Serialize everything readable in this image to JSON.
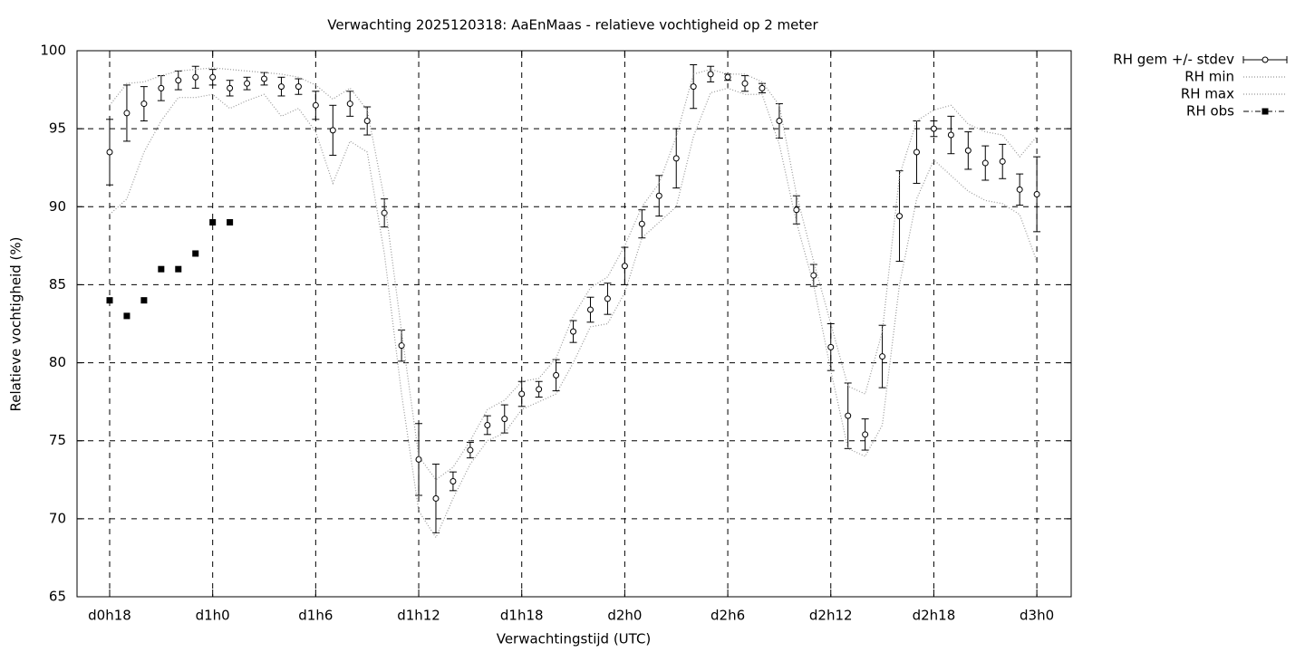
{
  "chart_data": {
    "type": "errorbar",
    "title": "Verwachting 2025120318: AaEnMaas - relatieve vochtigheid op 2 meter",
    "xlabel": "Verwachtingstijd (UTC)",
    "ylabel": "Relatieve vochtigheid (%)",
    "x": [
      18,
      19,
      20,
      21,
      22,
      23,
      24,
      25,
      26,
      27,
      28,
      29,
      30,
      31,
      32,
      33,
      34,
      35,
      36,
      37,
      38,
      39,
      40,
      41,
      42,
      43,
      44,
      45,
      46,
      47,
      48,
      49,
      50,
      51,
      52,
      53,
      54,
      55,
      56,
      57,
      58,
      59,
      60,
      61,
      62,
      63,
      64,
      65,
      66,
      67,
      68,
      69,
      70,
      71,
      72
    ],
    "xlim": [
      16.1,
      74
    ],
    "xticks": [
      {
        "value": 18,
        "label": "d0h18"
      },
      {
        "value": 24,
        "label": "d1h0"
      },
      {
        "value": 30,
        "label": "d1h6"
      },
      {
        "value": 36,
        "label": "d1h12"
      },
      {
        "value": 42,
        "label": "d1h18"
      },
      {
        "value": 48,
        "label": "d2h0"
      },
      {
        "value": 54,
        "label": "d2h6"
      },
      {
        "value": 60,
        "label": "d2h12"
      },
      {
        "value": 66,
        "label": "d2h18"
      },
      {
        "value": 72,
        "label": "d3h0"
      }
    ],
    "ylim": [
      65,
      100
    ],
    "yticks": [
      65,
      70,
      75,
      80,
      85,
      90,
      95,
      100
    ],
    "grid": true,
    "legend": "outside-top-right",
    "series": [
      {
        "name": "RH gem +/- stdev",
        "style": "errorbars",
        "color": "#000000",
        "values": [
          93.5,
          96.0,
          96.6,
          97.6,
          98.1,
          98.3,
          98.3,
          97.6,
          97.9,
          98.2,
          97.7,
          97.7,
          96.5,
          94.9,
          96.6,
          95.5,
          89.6,
          81.1,
          73.8,
          71.3,
          72.4,
          74.4,
          76.0,
          76.4,
          78.0,
          78.3,
          79.2,
          82.0,
          83.4,
          84.1,
          86.2,
          88.9,
          90.7,
          93.1,
          97.7,
          98.5,
          98.3,
          97.9,
          97.6,
          95.5,
          89.8,
          85.6,
          81.0,
          76.6,
          75.4,
          80.4,
          89.4,
          93.5,
          95.0,
          94.6,
          93.6,
          92.8,
          92.9,
          91.1,
          90.8
        ],
        "errors": [
          2.1,
          1.8,
          1.1,
          0.8,
          0.6,
          0.7,
          0.5,
          0.5,
          0.4,
          0.4,
          0.6,
          0.5,
          0.9,
          1.6,
          0.8,
          0.9,
          0.9,
          1.0,
          2.3,
          2.2,
          0.6,
          0.5,
          0.6,
          0.9,
          0.8,
          0.5,
          1.0,
          0.7,
          0.8,
          1.0,
          1.2,
          0.9,
          1.3,
          1.9,
          1.4,
          0.5,
          0.2,
          0.5,
          0.3,
          1.1,
          0.9,
          0.7,
          1.5,
          2.1,
          1.0,
          2.0,
          2.9,
          2.0,
          0.5,
          1.2,
          1.2,
          1.1,
          1.1,
          1.0,
          2.4
        ]
      },
      {
        "name": "RH min",
        "style": "dots",
        "color": "#999999",
        "values": [
          89.5,
          90.5,
          93.5,
          95.5,
          97.0,
          97.0,
          97.2,
          96.3,
          96.8,
          97.2,
          95.8,
          96.3,
          94.8,
          91.5,
          94.2,
          93.5,
          87.0,
          78.0,
          70.5,
          68.8,
          71.3,
          73.5,
          75.0,
          75.5,
          77.0,
          77.5,
          78.0,
          80.0,
          82.3,
          82.5,
          84.5,
          88.0,
          89.0,
          90.0,
          94.5,
          97.3,
          97.6,
          97.2,
          97.2,
          94.0,
          89.0,
          85.0,
          79.5,
          74.5,
          74.0,
          76.0,
          85.0,
          90.5,
          93.0,
          92.0,
          91.0,
          90.4,
          90.2,
          89.5,
          86.5
        ]
      },
      {
        "name": "RH max",
        "style": "dots",
        "color": "#999999",
        "values": [
          96.5,
          97.9,
          98.0,
          98.4,
          98.7,
          98.8,
          98.9,
          98.8,
          98.7,
          98.6,
          98.5,
          98.3,
          97.8,
          96.9,
          97.6,
          96.2,
          90.5,
          82.0,
          74.0,
          72.5,
          73.3,
          75.0,
          77.0,
          77.6,
          78.8,
          79.0,
          80.3,
          83.0,
          84.8,
          85.5,
          87.5,
          90.0,
          91.5,
          94.5,
          98.5,
          98.8,
          98.5,
          98.5,
          98.0,
          96.5,
          90.8,
          86.5,
          82.5,
          78.5,
          78.0,
          82.0,
          92.0,
          95.5,
          96.2,
          96.5,
          95.3,
          94.8,
          94.6,
          93.2,
          94.5
        ]
      },
      {
        "name": "RH obs",
        "style": "points",
        "color": "#000000",
        "x": [
          18,
          19,
          20,
          21,
          22,
          23,
          24,
          25
        ],
        "values": [
          84,
          83,
          84,
          86,
          86,
          87,
          89,
          89
        ]
      }
    ]
  }
}
